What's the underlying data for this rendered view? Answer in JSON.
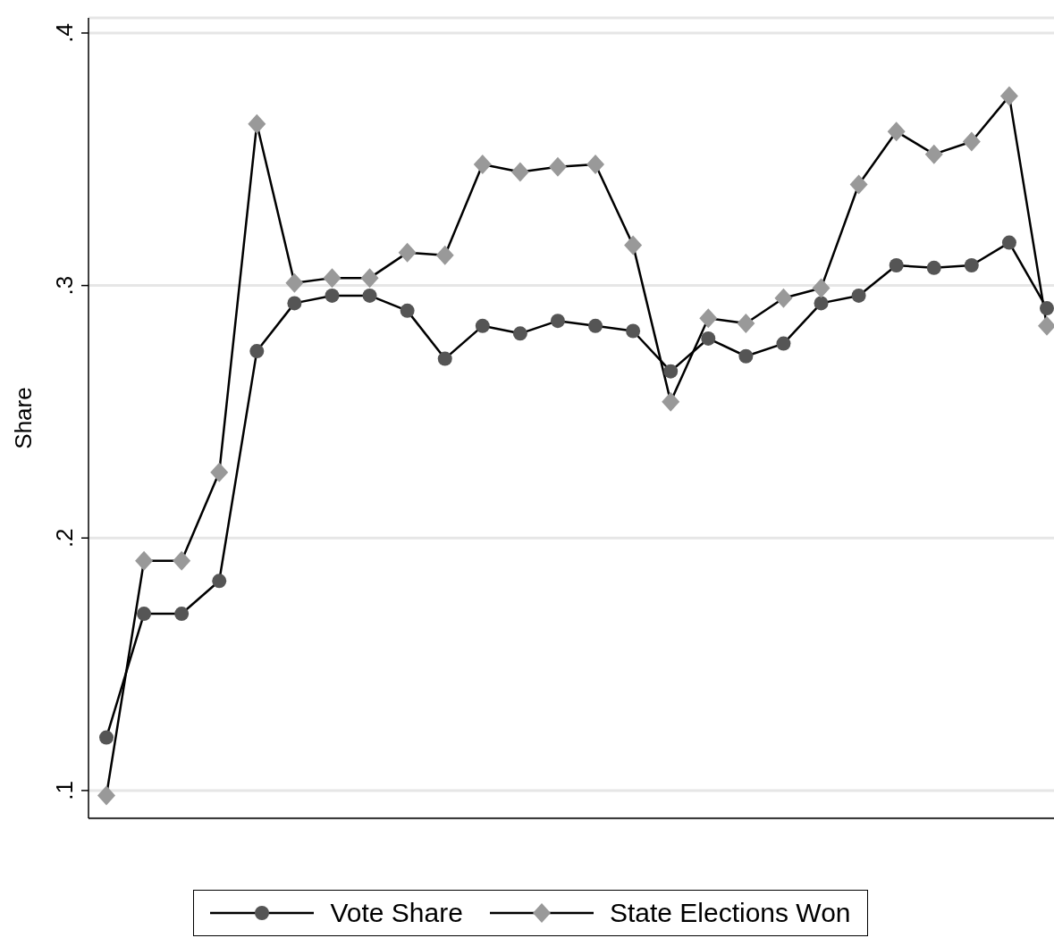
{
  "chart_data": {
    "type": "line",
    "ylabel": "Share",
    "categories": [
      null,
      null,
      null,
      null,
      null,
      null,
      null,
      null,
      null,
      null,
      null,
      null,
      null,
      null,
      null,
      null,
      null,
      null,
      null,
      null,
      null,
      null,
      null,
      null,
      null,
      null
    ],
    "series": [
      {
        "name": "Vote Share",
        "color": "#555555",
        "marker": "circle",
        "values": [
          0.121,
          0.17,
          0.17,
          0.183,
          0.274,
          0.293,
          0.296,
          0.296,
          0.29,
          0.271,
          0.284,
          0.281,
          0.286,
          0.284,
          0.282,
          0.266,
          0.279,
          0.272,
          0.277,
          0.293,
          0.296,
          0.308,
          0.307,
          0.308,
          0.317,
          0.291
        ]
      },
      {
        "name": "State Elections Won",
        "color": "#999999",
        "marker": "diamond",
        "values": [
          0.098,
          0.191,
          0.191,
          0.226,
          0.364,
          0.301,
          0.303,
          0.303,
          0.313,
          0.312,
          0.348,
          0.345,
          0.347,
          0.348,
          0.316,
          0.254,
          0.287,
          0.285,
          0.295,
          0.299,
          0.34,
          0.361,
          0.352,
          0.357,
          0.375,
          0.284
        ]
      }
    ],
    "ylim": [
      0.089,
      0.406
    ],
    "yticks": [
      {
        "value": 0.1,
        "label": ".1"
      },
      {
        "value": 0.2,
        "label": ".2"
      },
      {
        "value": 0.3,
        "label": ".3"
      },
      {
        "value": 0.4,
        "label": ".4"
      }
    ],
    "grid": "y",
    "legend": "bottom",
    "line_style": "solid"
  }
}
